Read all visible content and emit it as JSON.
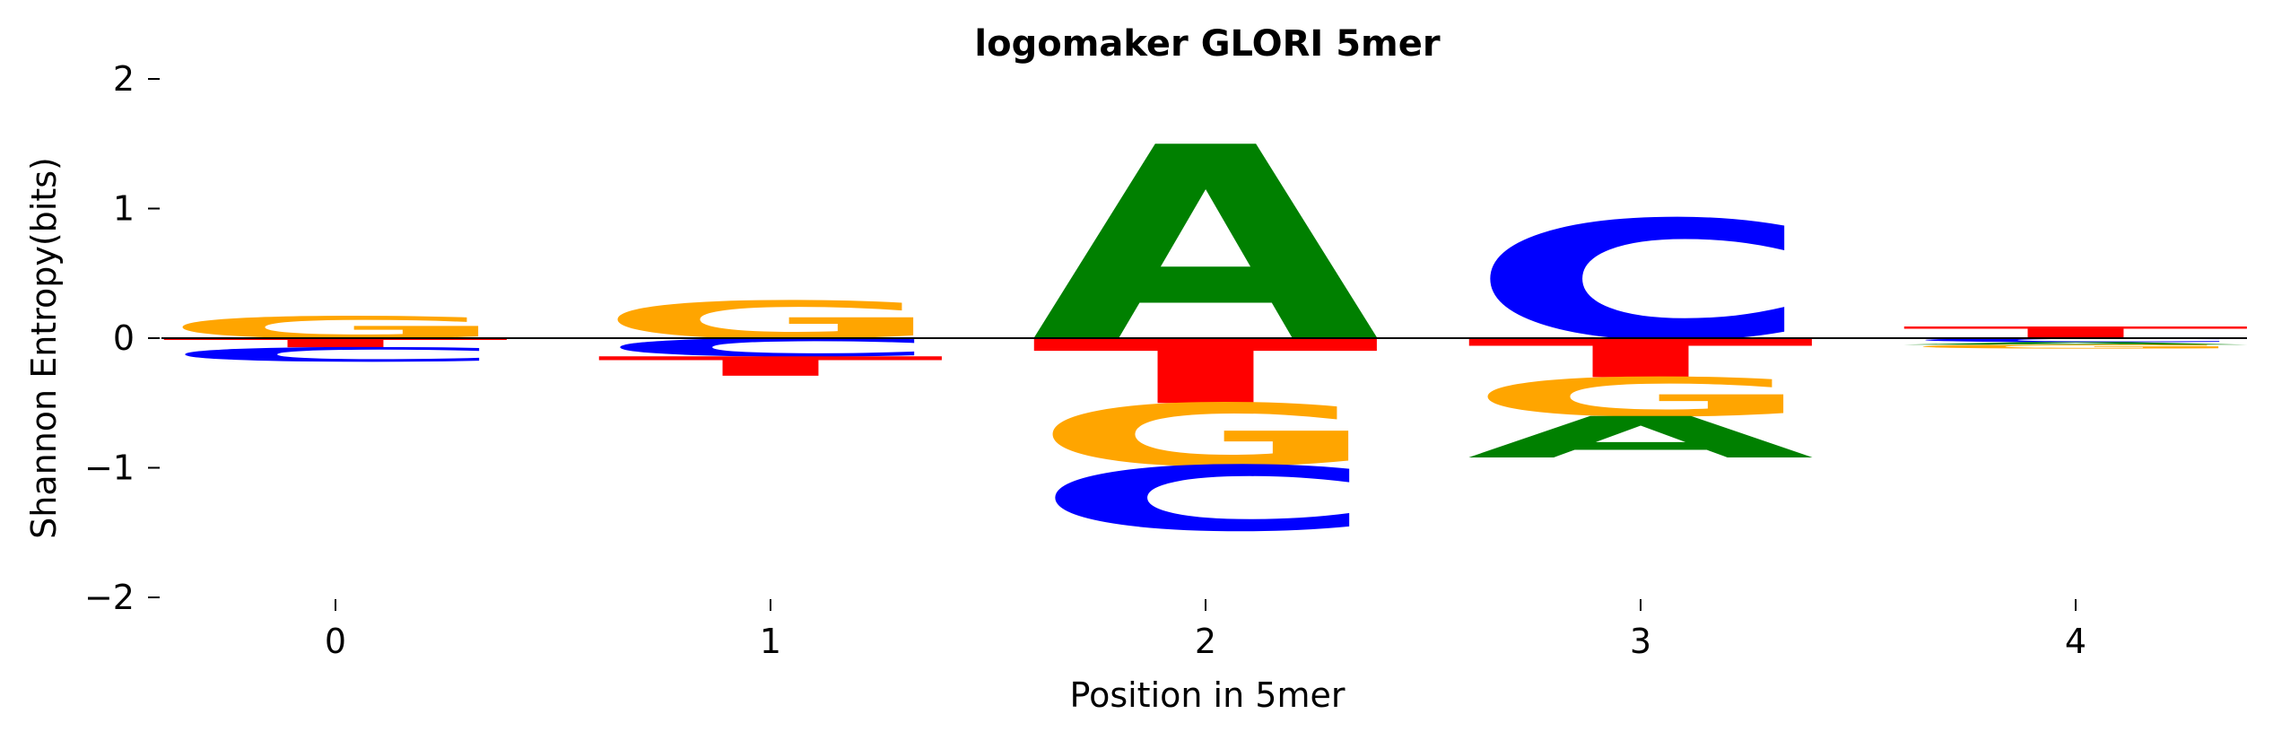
{
  "chart_data": {
    "type": "logo",
    "title": "logomaker GLORI 5mer",
    "xlabel": "Position in 5mer",
    "ylabel": "Shannon Entropy(bits)",
    "ylim": [
      -2,
      2
    ],
    "yticks": [
      -2,
      -1,
      0,
      1,
      2
    ],
    "ytick_labels": [
      "−2",
      "−1",
      "0",
      "1",
      "2"
    ],
    "positions": [
      0,
      1,
      2,
      3,
      4
    ],
    "xtick_labels": [
      "0",
      "1",
      "2",
      "3",
      "4"
    ],
    "colors": {
      "A": "#008000",
      "C": "#0000ff",
      "G": "#ffa500",
      "T": "#ff0000"
    },
    "stacks": [
      {
        "position": 0,
        "letters": [
          {
            "char": "G",
            "bottom": 0.0,
            "top": 0.17
          },
          {
            "char": "T",
            "bottom": -0.07,
            "top": 0.0
          },
          {
            "char": "C",
            "bottom": -0.18,
            "top": -0.07
          }
        ]
      },
      {
        "position": 1,
        "letters": [
          {
            "char": "G",
            "bottom": 0.0,
            "top": 0.29
          },
          {
            "char": "C",
            "bottom": -0.14,
            "top": 0.0
          },
          {
            "char": "T",
            "bottom": -0.29,
            "top": -0.14
          }
        ]
      },
      {
        "position": 2,
        "letters": [
          {
            "char": "A",
            "bottom": 0.0,
            "top": 1.5
          },
          {
            "char": "T",
            "bottom": -0.5,
            "top": 0.0
          },
          {
            "char": "G",
            "bottom": -0.98,
            "top": -0.5
          },
          {
            "char": "C",
            "bottom": -1.48,
            "top": -0.98
          }
        ]
      },
      {
        "position": 3,
        "letters": [
          {
            "char": "C",
            "bottom": 0.0,
            "top": 0.92
          },
          {
            "char": "T",
            "bottom": -0.3,
            "top": 0.0
          },
          {
            "char": "G",
            "bottom": -0.6,
            "top": -0.3
          },
          {
            "char": "A",
            "bottom": -0.92,
            "top": -0.6
          }
        ]
      },
      {
        "position": 4,
        "letters": [
          {
            "char": "T",
            "bottom": 0.0,
            "top": 0.09
          },
          {
            "char": "C",
            "bottom": -0.03,
            "top": 0.0
          },
          {
            "char": "A",
            "bottom": -0.05,
            "top": -0.03
          },
          {
            "char": "G",
            "bottom": -0.08,
            "top": -0.05
          }
        ]
      }
    ]
  }
}
